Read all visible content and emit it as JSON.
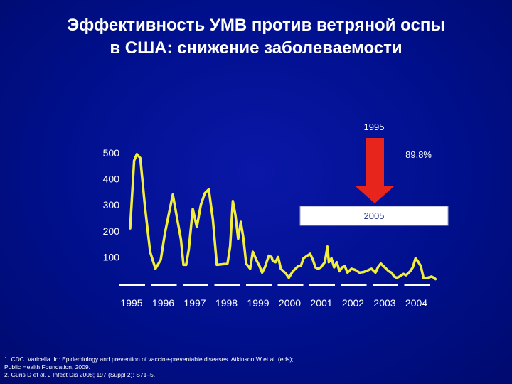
{
  "title": {
    "line1": "Эффективность УМВ против ветряной оспы",
    "line2": "в США: снижение заболеваемости"
  },
  "colors": {
    "background": "#00108c",
    "line": "#f2ee3e",
    "arrow": "#e8251c",
    "text": "#ffffff",
    "box_fill": "#ffffff",
    "box_text": "#2a3a8c"
  },
  "annotations": {
    "arrow_top_label": "1995",
    "percent_label": "89.8%",
    "box_label": "2005"
  },
  "chart_data": {
    "type": "line",
    "ylim": [
      0,
      520
    ],
    "yticks": [
      100,
      200,
      300,
      400,
      500
    ],
    "categories": [
      "1995",
      "1996",
      "1997",
      "1998",
      "1999",
      "2000",
      "2001",
      "2002",
      "2003",
      "2004"
    ],
    "grid": false,
    "series": [
      {
        "values": [
          [
            0.0,
            210
          ],
          [
            0.15,
            470
          ],
          [
            0.25,
            495
          ],
          [
            0.38,
            480
          ],
          [
            0.55,
            300
          ],
          [
            0.75,
            120
          ],
          [
            0.95,
            55
          ],
          [
            1.15,
            90
          ],
          [
            1.3,
            190
          ],
          [
            1.45,
            265
          ],
          [
            1.6,
            340
          ],
          [
            1.75,
            255
          ],
          [
            1.9,
            170
          ],
          [
            2.0,
            70
          ],
          [
            2.1,
            70
          ],
          [
            2.2,
            130
          ],
          [
            2.35,
            285
          ],
          [
            2.5,
            215
          ],
          [
            2.65,
            300
          ],
          [
            2.8,
            345
          ],
          [
            2.95,
            360
          ],
          [
            3.1,
            245
          ],
          [
            3.25,
            70
          ],
          [
            3.45,
            72
          ],
          [
            3.65,
            75
          ],
          [
            3.75,
            140
          ],
          [
            3.85,
            315
          ],
          [
            3.95,
            260
          ],
          [
            4.05,
            170
          ],
          [
            4.15,
            235
          ],
          [
            4.25,
            170
          ],
          [
            4.35,
            75
          ],
          [
            4.5,
            55
          ],
          [
            4.6,
            120
          ],
          [
            4.75,
            85
          ],
          [
            4.85,
            65
          ],
          [
            4.95,
            40
          ],
          [
            5.05,
            60
          ],
          [
            5.2,
            105
          ],
          [
            5.3,
            100
          ],
          [
            5.35,
            85
          ],
          [
            5.45,
            80
          ],
          [
            5.55,
            100
          ],
          [
            5.65,
            55
          ],
          [
            5.75,
            45
          ],
          [
            5.85,
            35
          ],
          [
            5.95,
            20
          ],
          [
            6.1,
            45
          ],
          [
            6.3,
            65
          ],
          [
            6.4,
            65
          ],
          [
            6.5,
            95
          ],
          [
            6.6,
            102
          ],
          [
            6.75,
            112
          ],
          [
            6.85,
            90
          ],
          [
            6.95,
            60
          ],
          [
            7.05,
            55
          ],
          [
            7.15,
            60
          ],
          [
            7.3,
            80
          ],
          [
            7.4,
            140
          ],
          [
            7.45,
            80
          ],
          [
            7.55,
            95
          ],
          [
            7.65,
            60
          ],
          [
            7.75,
            80
          ],
          [
            7.85,
            45
          ],
          [
            7.95,
            60
          ],
          [
            8.05,
            65
          ],
          [
            8.15,
            40
          ],
          [
            8.3,
            55
          ],
          [
            8.45,
            50
          ],
          [
            8.6,
            40
          ],
          [
            8.75,
            42
          ],
          [
            8.9,
            48
          ],
          [
            9.05,
            55
          ],
          [
            9.2,
            40
          ],
          [
            9.3,
            62
          ],
          [
            9.4,
            75
          ],
          [
            9.55,
            60
          ],
          [
            9.7,
            45
          ],
          [
            9.8,
            40
          ],
          [
            9.9,
            25
          ],
          [
            10.0,
            20
          ],
          [
            10.1,
            25
          ],
          [
            10.25,
            35
          ],
          [
            10.35,
            30
          ],
          [
            10.5,
            45
          ],
          [
            10.6,
            60
          ],
          [
            10.7,
            95
          ],
          [
            10.8,
            82
          ],
          [
            10.9,
            65
          ],
          [
            11.0,
            20
          ],
          [
            11.15,
            20
          ],
          [
            11.3,
            25
          ],
          [
            11.4,
            20
          ],
          [
            11.45,
            15
          ]
        ]
      }
    ]
  },
  "footnotes": {
    "line1": "1. CDC. Varicella. In: Epidemiology and prevention of vaccine-preventable diseases. Atkinson W et al. (eds);",
    "line2": "Public Health Foundation, 2009.",
    "line3": "2. Guris D et al. J Infect Dis 2008; 197 (Suppl 2): S71–5."
  }
}
